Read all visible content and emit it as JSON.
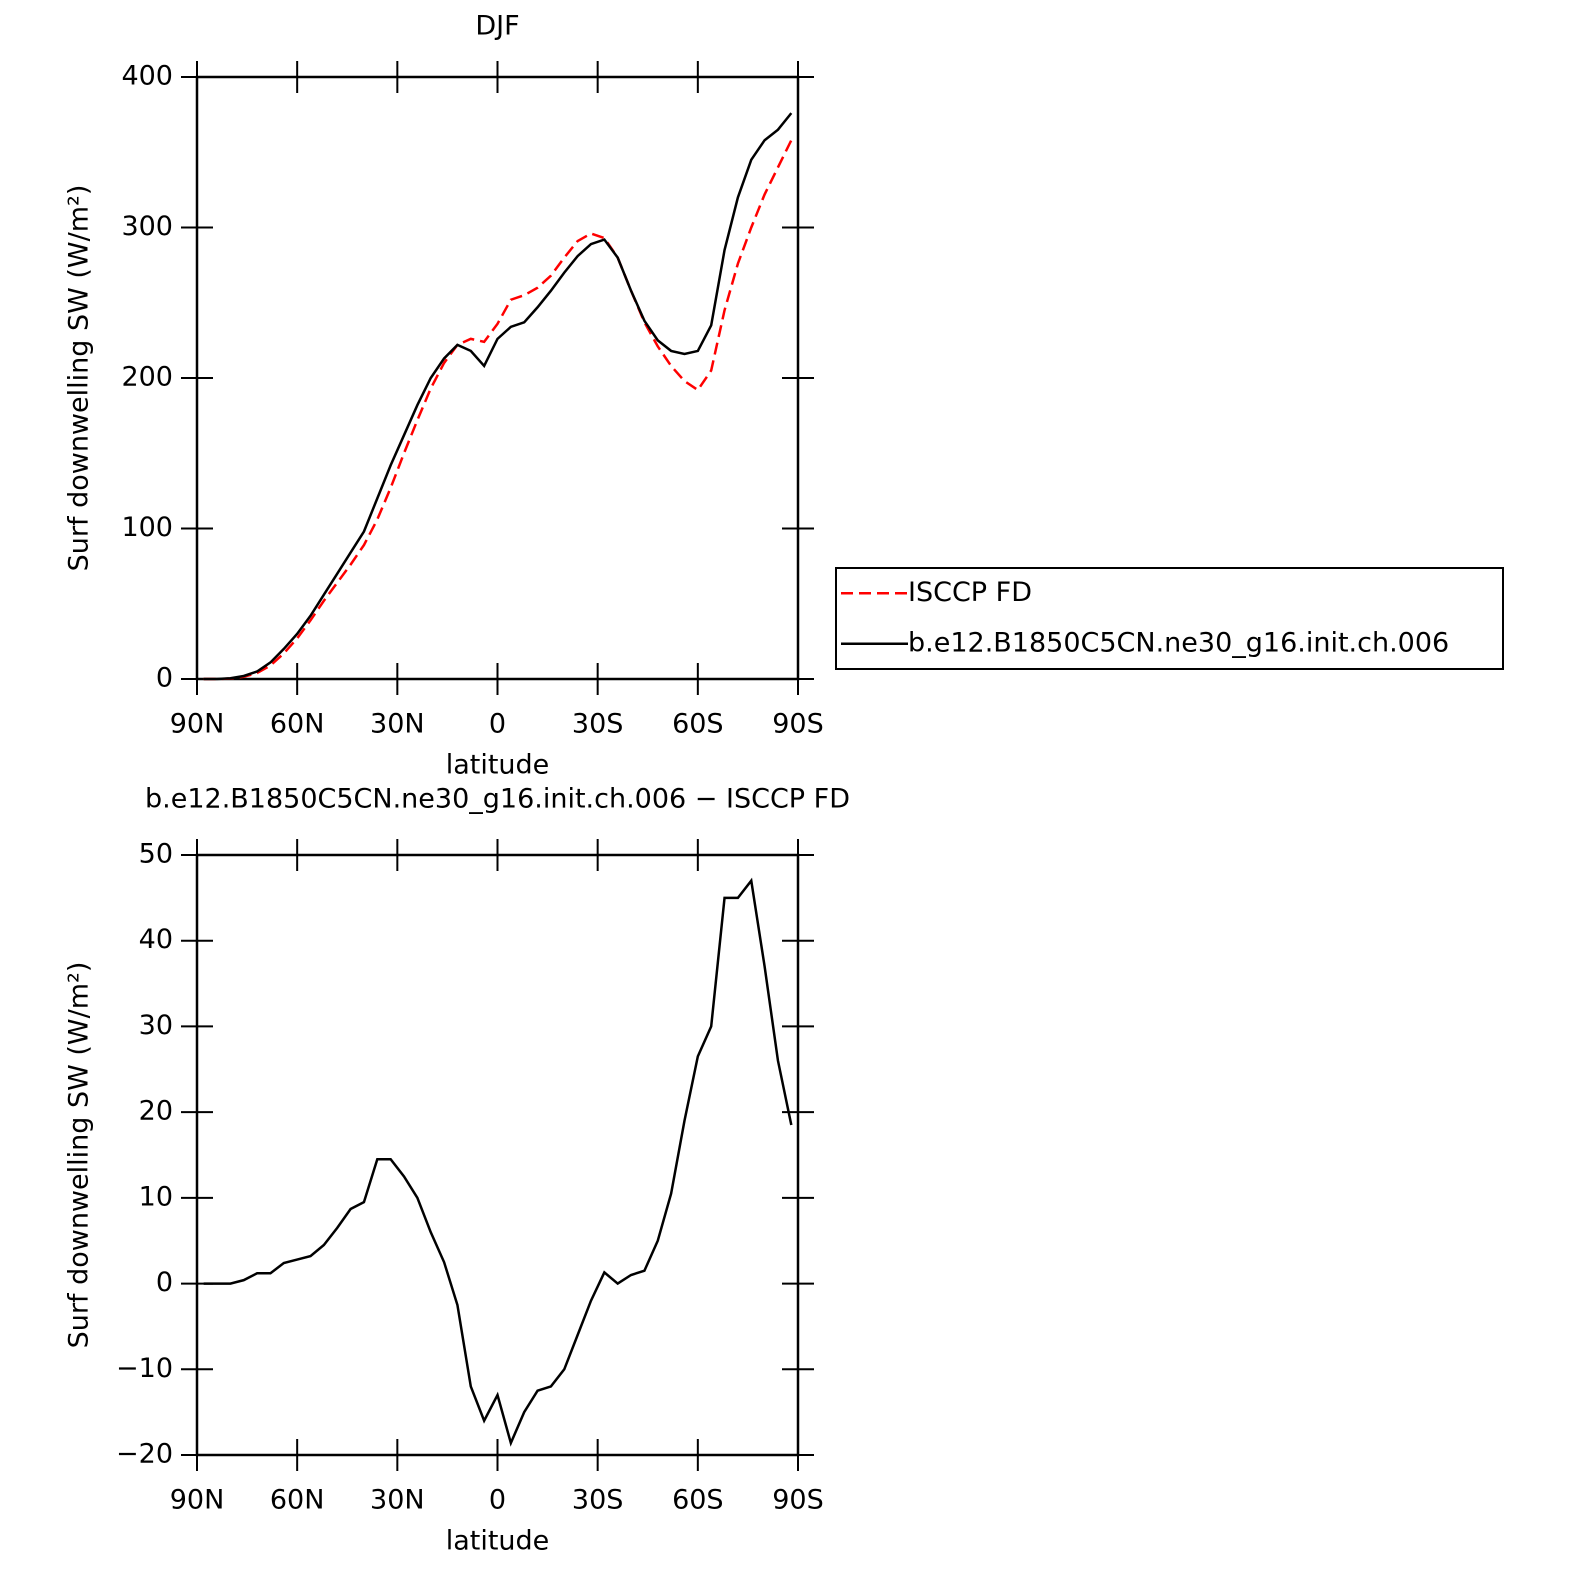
{
  "chart_data": [
    {
      "type": "line",
      "title": "DJF",
      "xlabel": "latitude",
      "ylabel": "Surf downwelling SW (W/m²)",
      "x": [
        88,
        84,
        80,
        76,
        72,
        68,
        64,
        60,
        56,
        52,
        48,
        44,
        40,
        36,
        32,
        28,
        24,
        20,
        16,
        12,
        8,
        4,
        0,
        -4,
        -8,
        -12,
        -16,
        -20,
        -24,
        -28,
        -32,
        -36,
        -40,
        -44,
        -48,
        -52,
        -56,
        -60,
        -64,
        -68,
        -72,
        -76,
        -80,
        -84,
        -88
      ],
      "series": [
        {
          "name": "ISCCP FD",
          "color": "#ff0000",
          "dash": "dashed",
          "values": [
            0,
            0,
            0.3,
            1.5,
            4,
            9,
            17,
            27,
            39,
            52,
            64,
            76,
            89,
            106,
            127,
            150,
            172,
            193,
            210,
            222,
            226,
            224,
            236,
            252,
            255,
            260,
            268,
            280,
            291,
            296,
            293,
            280,
            258,
            237,
            221,
            208,
            198,
            192,
            205,
            245,
            276,
            300,
            322,
            340,
            358
          ]
        },
        {
          "name": "b.e12.B1850C5CN.ne30_g16.init.ch.006",
          "color": "#000000",
          "dash": "solid",
          "values": [
            0,
            0,
            0.5,
            2,
            5,
            11,
            20,
            30,
            42,
            56,
            70,
            84,
            98,
            120,
            142,
            162,
            182,
            200,
            213,
            222,
            218,
            208,
            226,
            234,
            237,
            247,
            258,
            270,
            281,
            289,
            292,
            280,
            258,
            238,
            225,
            218,
            216,
            218,
            235,
            285,
            320,
            345,
            358,
            365,
            376
          ]
        }
      ],
      "xlim": [
        90,
        -90
      ],
      "xticks": [
        {
          "value": 90,
          "label": "90N"
        },
        {
          "value": 60,
          "label": "60N"
        },
        {
          "value": 30,
          "label": "30N"
        },
        0,
        {
          "value": -30,
          "label": "30S"
        },
        {
          "value": -60,
          "label": "60S"
        },
        {
          "value": -90,
          "label": "90S"
        }
      ],
      "ylim": [
        0,
        400
      ],
      "yticks": [
        0,
        100,
        200,
        300,
        400
      ],
      "legend": "right"
    },
    {
      "type": "line",
      "title": "b.e12.B1850C5CN.ne30_g16.init.ch.006 − ISCCP FD",
      "xlabel": "latitude",
      "ylabel": "Surf downwelling SW (W/m²)",
      "x": [
        88,
        84,
        80,
        76,
        72,
        68,
        64,
        60,
        56,
        52,
        48,
        44,
        40,
        36,
        32,
        28,
        24,
        20,
        16,
        12,
        8,
        4,
        0,
        -4,
        -8,
        -12,
        -16,
        -20,
        -24,
        -28,
        -32,
        -36,
        -40,
        -44,
        -48,
        -52,
        -56,
        -60,
        -64,
        -68,
        -72,
        -76,
        -80,
        -84,
        -88
      ],
      "series": [
        {
          "color": "#000000",
          "dash": "solid",
          "values": [
            0,
            0,
            0,
            0.4,
            1.2,
            1.2,
            2.4,
            2.8,
            3.2,
            4.5,
            6.5,
            8.7,
            9.5,
            14.5,
            14.5,
            12.5,
            10,
            6,
            2.5,
            -2.5,
            -12,
            -16,
            -13,
            -18.6,
            -15,
            -12.5,
            -12,
            -10,
            -6,
            -2,
            1.3,
            0,
            1,
            1.5,
            5,
            10.5,
            19,
            26.5,
            30,
            45,
            45,
            47,
            37,
            26,
            18.5
          ]
        }
      ],
      "xlim": [
        90,
        -90
      ],
      "xticks": [
        {
          "value": 90,
          "label": "90N"
        },
        {
          "value": 60,
          "label": "60N"
        },
        {
          "value": 30,
          "label": "30N"
        },
        0,
        {
          "value": -30,
          "label": "30S"
        },
        {
          "value": -60,
          "label": "60S"
        },
        {
          "value": -90,
          "label": "90S"
        }
      ],
      "ylim": [
        -20,
        50
      ],
      "yticks": [
        {
          "value": -20,
          "label": "−20"
        },
        {
          "value": -10,
          "label": "−10"
        },
        0,
        10,
        20,
        30,
        40,
        50
      ]
    }
  ]
}
